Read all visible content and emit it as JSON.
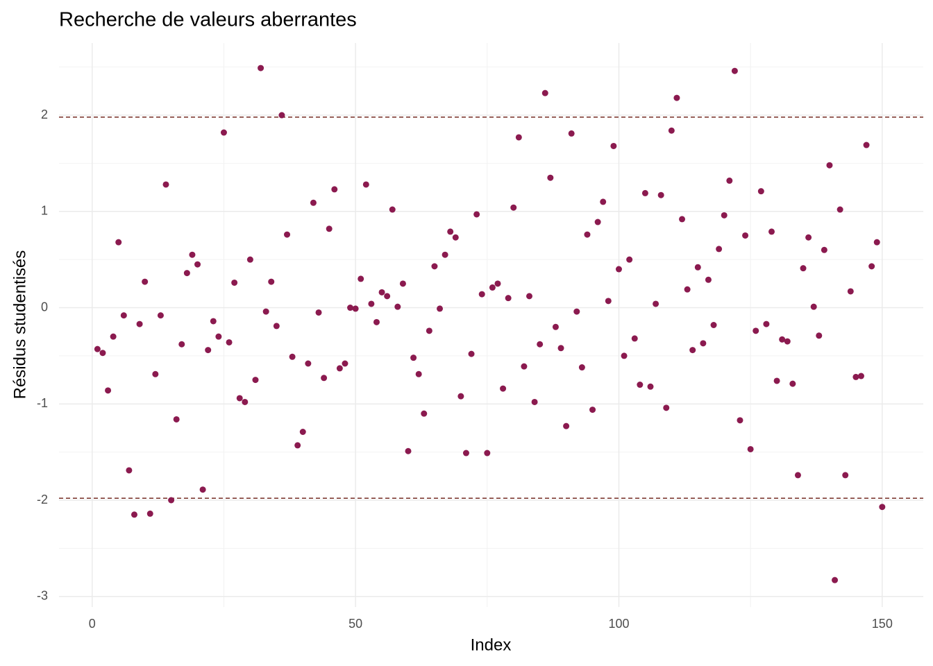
{
  "chart_data": {
    "type": "scatter",
    "title": "Recherche de valeurs aberrantes",
    "x_label": "Index",
    "y_label": "Résidus studentisés",
    "color": "#8b1a4f",
    "xlim": [
      -6.3,
      157.8
    ],
    "ylim": [
      -3.11,
      2.75
    ],
    "xticks": [
      0,
      50,
      100,
      150
    ],
    "yticks": [
      -3,
      -2,
      -1,
      0,
      1,
      2
    ],
    "minor_xticks": [
      25,
      75,
      125
    ],
    "minor_yticks": [
      -2.5,
      -1.5,
      -0.5,
      0.5,
      1.5,
      2.5
    ],
    "grid": true,
    "hlines": [
      1.98,
      -1.98
    ],
    "hline_color": "#7f3b33",
    "x": [
      1,
      2,
      3,
      4,
      5,
      6,
      7,
      8,
      9,
      10,
      11,
      12,
      13,
      14,
      15,
      16,
      17,
      18,
      19,
      20,
      21,
      22,
      23,
      24,
      25,
      26,
      27,
      28,
      29,
      30,
      31,
      32,
      33,
      34,
      35,
      36,
      37,
      38,
      39,
      40,
      41,
      42,
      43,
      44,
      45,
      46,
      47,
      48,
      49,
      50,
      51,
      52,
      53,
      54,
      55,
      56,
      57,
      58,
      59,
      60,
      61,
      62,
      63,
      64,
      65,
      66,
      67,
      68,
      69,
      70,
      71,
      72,
      73,
      74,
      75,
      76,
      77,
      78,
      79,
      80,
      81,
      82,
      83,
      84,
      85,
      86,
      87,
      88,
      89,
      90,
      91,
      92,
      93,
      94,
      95,
      96,
      97,
      98,
      99,
      100,
      101,
      102,
      103,
      104,
      105,
      106,
      107,
      108,
      109,
      110,
      111,
      112,
      113,
      114,
      115,
      116,
      117,
      118,
      119,
      120,
      121,
      122,
      123,
      124,
      125,
      126,
      127,
      128,
      129,
      130,
      131,
      132,
      133,
      134,
      135,
      136,
      137,
      138,
      139,
      140,
      141,
      142,
      143,
      144,
      145,
      146,
      147,
      148,
      149,
      150
    ],
    "values": [
      -0.43,
      -0.47,
      -0.86,
      -0.3,
      0.68,
      -0.08,
      -1.69,
      -2.15,
      -0.17,
      0.27,
      -2.14,
      -0.69,
      -0.08,
      1.28,
      -2.0,
      -1.16,
      -0.38,
      0.36,
      0.55,
      0.45,
      -1.89,
      -0.44,
      -0.14,
      -0.3,
      1.82,
      -0.36,
      0.26,
      -0.94,
      -0.98,
      0.5,
      -0.75,
      2.49,
      -0.04,
      0.27,
      -0.19,
      2.0,
      0.76,
      -0.51,
      -1.43,
      -1.29,
      -0.58,
      1.09,
      -0.05,
      -0.73,
      0.82,
      1.23,
      -0.63,
      -0.58,
      0.0,
      -0.01,
      0.3,
      1.28,
      0.04,
      -0.15,
      0.16,
      0.12,
      1.02,
      0.01,
      0.25,
      -1.49,
      -0.52,
      -0.69,
      -1.1,
      -0.24,
      0.43,
      -0.01,
      0.55,
      0.79,
      0.73,
      -0.92,
      -1.51,
      -0.48,
      0.97,
      0.14,
      -1.51,
      0.21,
      0.25,
      -0.84,
      0.1,
      1.04,
      1.77,
      -0.61,
      0.12,
      -0.98,
      -0.38,
      2.23,
      1.35,
      -0.2,
      -0.42,
      -1.23,
      1.81,
      -0.04,
      -0.62,
      0.76,
      -1.06,
      0.89,
      1.1,
      0.07,
      1.68,
      0.4,
      -0.5,
      0.5,
      -0.32,
      -0.8,
      1.19,
      -0.82,
      0.04,
      1.17,
      -1.04,
      1.84,
      2.18,
      0.92,
      0.19,
      -0.44,
      0.42,
      -0.37,
      0.29,
      -0.18,
      0.61,
      0.96,
      1.32,
      2.46,
      -1.17,
      0.75,
      -1.47,
      -0.24,
      1.21,
      -0.17,
      0.79,
      -0.76,
      -0.33,
      -0.35,
      -0.79,
      -1.74,
      0.41,
      0.73,
      0.01,
      -0.29,
      0.6,
      1.48,
      -2.83,
      1.02,
      -1.74,
      0.17,
      -0.72,
      -0.71,
      1.69,
      0.43,
      0.68,
      -2.07
    ]
  }
}
